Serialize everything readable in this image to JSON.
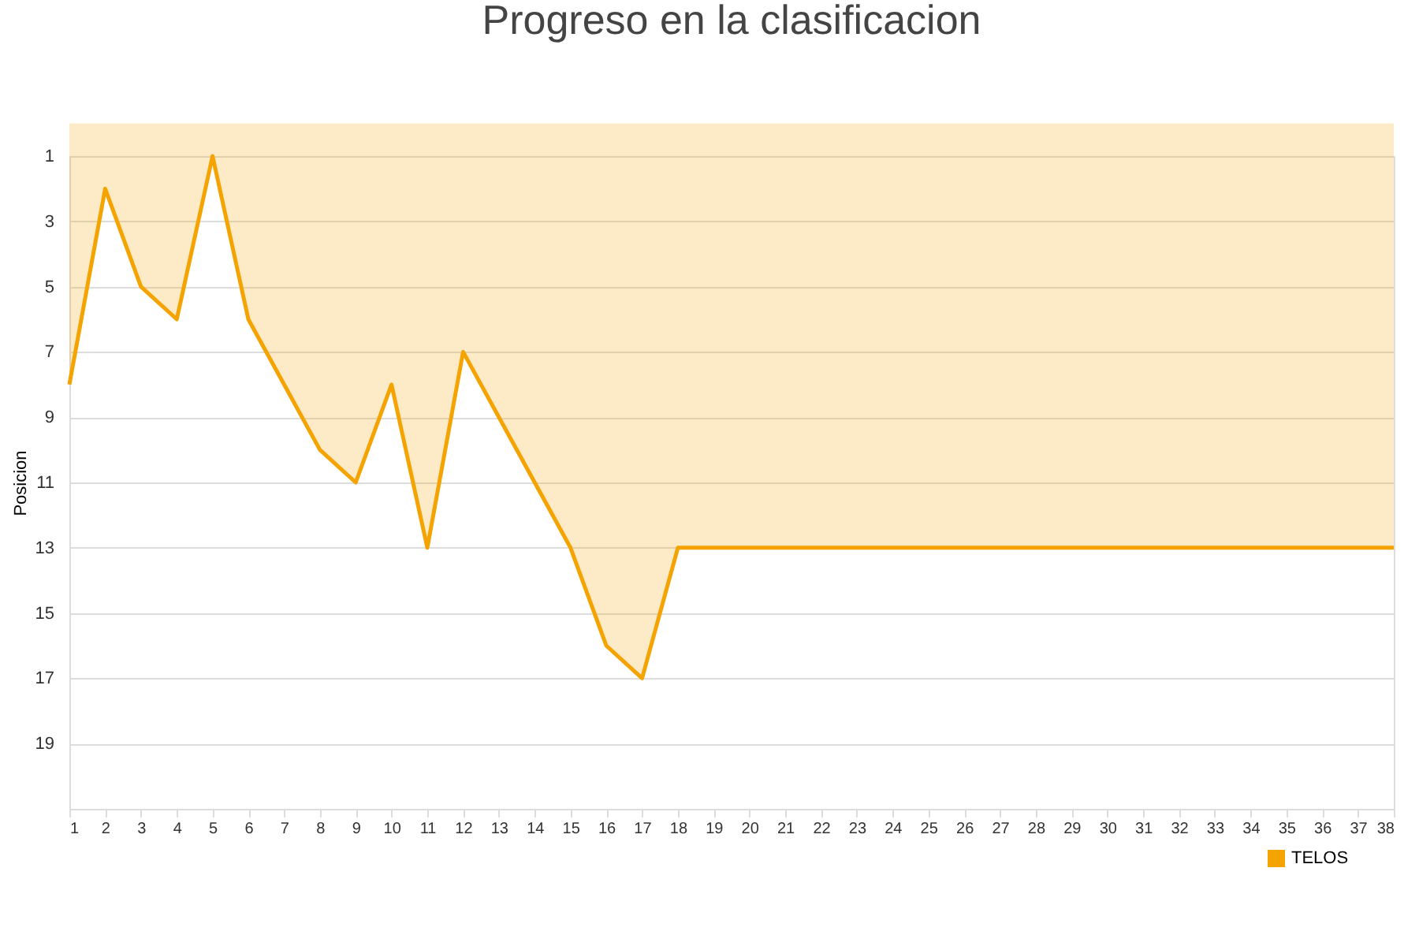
{
  "chart_data": {
    "type": "area",
    "title": "Progreso en la clasificacion",
    "ylabel": "Posicion",
    "x": [
      1,
      2,
      3,
      4,
      5,
      6,
      7,
      8,
      9,
      10,
      11,
      12,
      13,
      14,
      15,
      16,
      17,
      18,
      19,
      20,
      21,
      22,
      23,
      24,
      25,
      26,
      27,
      28,
      29,
      30,
      31,
      32,
      33,
      34,
      35,
      36,
      37,
      38
    ],
    "series": [
      {
        "name": "TELOS",
        "color": "#f5a300",
        "values": [
          8,
          2,
          5,
          6,
          1,
          6,
          8,
          10,
          11,
          8,
          13,
          7,
          9,
          11,
          13,
          16,
          17,
          13,
          13,
          13,
          13,
          13,
          13,
          13,
          13,
          13,
          13,
          13,
          13,
          13,
          13,
          13,
          13,
          13,
          13,
          13,
          13,
          13
        ]
      }
    ],
    "xlim": [
      1,
      38
    ],
    "xticks": [
      1,
      2,
      3,
      4,
      5,
      6,
      7,
      8,
      9,
      10,
      11,
      12,
      13,
      14,
      15,
      16,
      17,
      18,
      19,
      20,
      21,
      22,
      23,
      24,
      25,
      26,
      27,
      28,
      29,
      30,
      31,
      32,
      33,
      34,
      35,
      36,
      37,
      38
    ],
    "ylim": [
      21,
      1
    ],
    "yticks": [
      1,
      3,
      5,
      7,
      9,
      11,
      13,
      15,
      17,
      19
    ],
    "grid": "y",
    "legend": "bottom right"
  }
}
